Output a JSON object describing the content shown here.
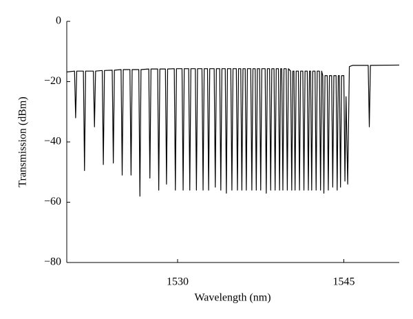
{
  "chart_data": {
    "type": "line",
    "x_label": "Wavelength (nm)",
    "y_label": "Transmission (dBm)",
    "xlim": [
      1520,
      1550
    ],
    "ylim": [
      -80,
      0
    ],
    "xticks": [
      1530,
      1545
    ],
    "yticks": [
      {
        "value": -80,
        "label": "−80"
      },
      {
        "value": -60,
        "label": "−60"
      },
      {
        "value": -40,
        "label": "−40"
      },
      {
        "value": -20,
        "label": "−20"
      },
      0
    ],
    "series": [
      {
        "color": "#000000",
        "x": [
          1520,
          1520.7,
          1520.8,
          1520.9,
          1521.5,
          1521.6,
          1521.7,
          1522.4,
          1522.5,
          1522.6,
          1523.2,
          1523.3,
          1523.4,
          1524.1,
          1524.2,
          1524.3,
          1524.9,
          1525,
          1525.1,
          1525.7,
          1525.8,
          1525.9,
          1526.5,
          1526.6,
          1526.7,
          1527.4,
          1527.5,
          1527.6,
          1528.2,
          1528.3,
          1528.4,
          1528.9,
          1529,
          1529.1,
          1529.7,
          1529.8,
          1529.9,
          1530.4,
          1530.5,
          1530.6,
          1531,
          1531.1,
          1531.2,
          1531.6,
          1531.7,
          1531.8,
          1532.2,
          1532.3,
          1532.4,
          1532.7,
          1532.8,
          1532.9,
          1533.3,
          1533.4,
          1533.5,
          1533.8,
          1533.9,
          1534,
          1534.3,
          1534.4,
          1534.5,
          1534.8,
          1534.9,
          1535,
          1535.3,
          1535.4,
          1535.5,
          1535.7,
          1535.8,
          1535.9,
          1536.1,
          1536.2,
          1536.3,
          1536.6,
          1536.7,
          1536.8,
          1537,
          1537.1,
          1537.2,
          1537.4,
          1537.5,
          1537.6,
          1537.9,
          1538,
          1538.1,
          1538.3,
          1538.4,
          1538.5,
          1538.7,
          1538.8,
          1538.9,
          1539.1,
          1539.2,
          1539.3,
          1539.4,
          1539.5,
          1539.6,
          1539.8,
          1539.9,
          1540,
          1540.2,
          1540.3,
          1540.4,
          1540.5,
          1540.6,
          1540.7,
          1540.9,
          1541,
          1541.1,
          1541.3,
          1541.4,
          1541.5,
          1541.7,
          1541.8,
          1541.9,
          1542,
          1542.1,
          1542.2,
          1542.4,
          1542.5,
          1542.6,
          1542.8,
          1542.9,
          1543,
          1543.1,
          1543.2,
          1543.3,
          1543.5,
          1543.6,
          1543.7,
          1543.9,
          1544,
          1544.1,
          1544.3,
          1544.4,
          1544.5,
          1544.6,
          1544.7,
          1544.8,
          1545,
          1545.1,
          1545.2,
          1545.35,
          1545.5,
          1545.8,
          1547.2,
          1547.3,
          1547.4,
          1550
        ],
        "values": [
          -16.8,
          -16.5,
          -32,
          -16.5,
          -16.5,
          -49.5,
          -16.5,
          -16.5,
          -35,
          -16.5,
          -16.3,
          -47.5,
          -16.3,
          -16.2,
          -47,
          -16.2,
          -16,
          -51,
          -16,
          -16,
          -51,
          -16,
          -16,
          -58,
          -16,
          -15.8,
          -52,
          -15.8,
          -15.8,
          -56,
          -15.8,
          -15.8,
          -54,
          -15.8,
          -15.7,
          -56,
          -15.7,
          -15.7,
          -56,
          -15.7,
          -15.7,
          -56,
          -15.7,
          -15.7,
          -56,
          -15.7,
          -15.7,
          -56,
          -15.7,
          -15.7,
          -56,
          -15.7,
          -15.7,
          -55,
          -15.7,
          -15.7,
          -56,
          -15.7,
          -15.7,
          -57,
          -15.7,
          -15.7,
          -56,
          -15.7,
          -15.7,
          -56,
          -15.7,
          -15.7,
          -56,
          -15.7,
          -15.7,
          -56,
          -15.7,
          -15.7,
          -56,
          -15.7,
          -15.7,
          -56,
          -15.7,
          -15.7,
          -56,
          -15.7,
          -15.7,
          -57,
          -15.7,
          -15.7,
          -56,
          -15.7,
          -15.7,
          -56,
          -15.7,
          -15.7,
          -56,
          -15.7,
          -15.7,
          -56,
          -15.7,
          -15.7,
          -56,
          -15.7,
          -16.5,
          -56,
          -16.5,
          -16.5,
          -56,
          -16.5,
          -16.5,
          -56,
          -16.5,
          -16.5,
          -56,
          -16.5,
          -16.5,
          -56,
          -16.5,
          -16.5,
          -56,
          -16.5,
          -16.5,
          -56,
          -16.5,
          -16.5,
          -56,
          -16.5,
          -18,
          -57,
          -18,
          -18,
          -56,
          -18,
          -18,
          -55,
          -18,
          -18,
          -56,
          -18,
          -18,
          -55,
          -18,
          -18,
          -53,
          -25,
          -54,
          -15,
          -14.6,
          -14.6,
          -35,
          -14.6,
          -14.5
        ]
      }
    ]
  }
}
